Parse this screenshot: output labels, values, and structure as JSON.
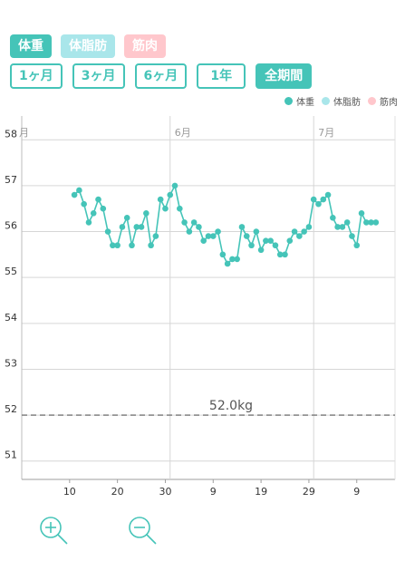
{
  "metric_tabs": [
    {
      "label": "体重"
    },
    {
      "label": "体脂肪"
    },
    {
      "label": "筋肉"
    }
  ],
  "range_tabs": [
    {
      "label": "1ヶ月"
    },
    {
      "label": "3ヶ月"
    },
    {
      "label": "6ヶ月"
    },
    {
      "label": "1年"
    },
    {
      "label": "全期間",
      "active": true
    }
  ],
  "legend": [
    {
      "label": "体重",
      "color": "#45c4b8"
    },
    {
      "label": "体脂肪",
      "color": "#a9e6ea"
    },
    {
      "label": "筋肉",
      "color": "#ffc7cc"
    }
  ],
  "zoom": {
    "in_icon": "zoom-in-icon",
    "out_icon": "zoom-out-icon"
  },
  "chart_data": {
    "type": "line",
    "series": [
      {
        "name": "体重",
        "color": "#45c4b8",
        "x": [
          12,
          13,
          14,
          15,
          16,
          17,
          18,
          19,
          20,
          21,
          22,
          23,
          24,
          25,
          26,
          27,
          28,
          29,
          30,
          31,
          32,
          33,
          34,
          35,
          36,
          37,
          38,
          39,
          40,
          41,
          42,
          43,
          44,
          45,
          46,
          47,
          48,
          49,
          50,
          51,
          52,
          53,
          54,
          55,
          56,
          57,
          58,
          59,
          60,
          61,
          62,
          63,
          64,
          65,
          66,
          67,
          68,
          69,
          70,
          71,
          72,
          73,
          74,
          75
        ],
        "values": [
          56.8,
          56.9,
          56.6,
          56.2,
          56.4,
          56.7,
          56.5,
          56.0,
          55.7,
          55.7,
          56.1,
          56.3,
          55.7,
          56.1,
          56.1,
          56.4,
          55.7,
          55.9,
          56.7,
          56.5,
          56.8,
          57.0,
          56.5,
          56.2,
          56.0,
          56.2,
          56.1,
          55.8,
          55.9,
          55.9,
          56.0,
          55.5,
          55.3,
          55.4,
          55.4,
          56.1,
          55.9,
          55.7,
          56.0,
          55.6,
          55.8,
          55.8,
          55.7,
          55.5,
          55.5,
          55.8,
          56.0,
          55.9,
          56.0,
          56.1,
          56.7,
          56.6,
          56.7,
          56.8,
          56.3,
          56.1,
          56.1,
          56.2,
          55.9,
          55.7,
          56.4,
          56.2,
          56.2,
          56.2
        ]
      }
    ],
    "reference_line": {
      "value": 52.0,
      "label": "52.0kg"
    },
    "y_ticks": [
      51,
      52,
      53,
      54,
      55,
      56,
      57,
      58
    ],
    "ylim": [
      50.6,
      58.4
    ],
    "xlim": [
      1,
      79
    ],
    "x_tick_positions": [
      11,
      21,
      31,
      41,
      51,
      61,
      71
    ],
    "x_tick_labels": [
      "10",
      "20",
      "30",
      "9",
      "19",
      "29",
      "9"
    ],
    "month_boundaries": [
      {
        "x": 32,
        "label": "6月"
      },
      {
        "x": 62,
        "label": "7月"
      },
      {
        "x": 1,
        "label": "月"
      }
    ],
    "grid": true
  }
}
